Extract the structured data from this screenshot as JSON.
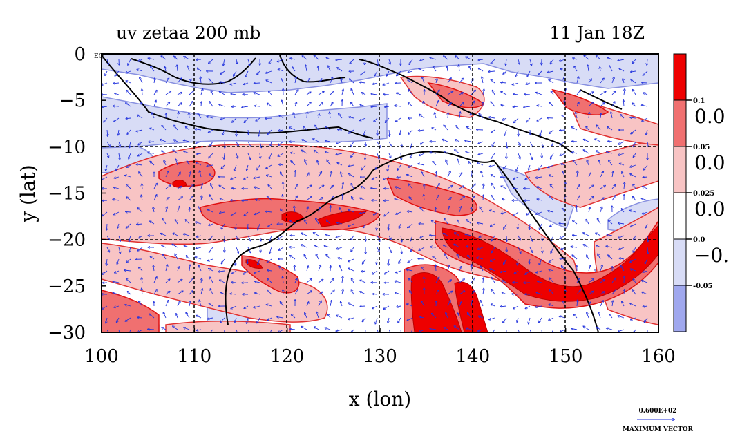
{
  "chart_data": {
    "type": "heatmap",
    "title_left": "uv zetaa 200 mb",
    "title_right": "11 Jan 18Z",
    "xlabel": "x (lon)",
    "ylabel": "y (lat)",
    "xlim": [
      100,
      160
    ],
    "ylim": [
      -30,
      0
    ],
    "x_ticks": [
      "100",
      "110",
      "120",
      "130",
      "140",
      "150",
      "160"
    ],
    "y_ticks": [
      "0",
      "−5",
      "−10",
      "−15",
      "−20",
      "−25",
      "−30"
    ],
    "y_tick_suffix": "EQ",
    "grid": true,
    "colorbar": {
      "colors": [
        "#ee0000",
        "#f07070",
        "#f8c4c4",
        "#ffffff",
        "#d8dcf6",
        "#a0a8ee"
      ],
      "boundary_labels": [
        "0.1",
        "0.05",
        "0.025",
        "0.0",
        "-0.05"
      ],
      "side_labels": [
        "0.0",
        "0.0",
        "0.0",
        "−0."
      ]
    },
    "vector_legend": {
      "value": "0.600E+02",
      "label": "MAXIMUM VECTOR"
    }
  }
}
